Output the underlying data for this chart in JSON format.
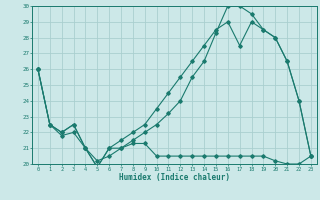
{
  "xlabel": "Humidex (Indice chaleur)",
  "bg_color": "#cce8e8",
  "grid_color": "#aacfcf",
  "line_color": "#1a7a6e",
  "xlim": [
    -0.5,
    23.5
  ],
  "ylim": [
    20,
    30
  ],
  "yticks": [
    20,
    21,
    22,
    23,
    24,
    25,
    26,
    27,
    28,
    29,
    30
  ],
  "xticks": [
    0,
    1,
    2,
    3,
    4,
    5,
    6,
    7,
    8,
    9,
    10,
    11,
    12,
    13,
    14,
    15,
    16,
    17,
    18,
    19,
    20,
    21,
    22,
    23
  ],
  "line1_x": [
    0,
    1,
    2,
    3,
    4,
    5,
    6,
    7,
    8,
    9,
    10,
    11,
    12,
    13,
    14,
    15,
    16,
    17,
    18,
    19,
    20,
    21,
    22,
    23
  ],
  "line1_y": [
    26,
    22.5,
    22,
    22.5,
    21,
    19.8,
    21,
    21,
    21.5,
    22,
    22.5,
    23.2,
    24,
    25.5,
    26.5,
    28.3,
    30,
    30,
    29.5,
    28.5,
    28,
    26.5,
    24,
    20.5
  ],
  "line2_x": [
    0,
    1,
    2,
    3,
    4,
    5,
    6,
    7,
    8,
    9,
    10,
    11,
    12,
    13,
    14,
    15,
    16,
    17,
    18,
    19,
    20,
    21,
    22,
    23
  ],
  "line2_y": [
    26,
    22.5,
    22,
    22.5,
    21,
    19.8,
    21,
    21.5,
    22,
    22.5,
    23.5,
    24.5,
    25.5,
    26.5,
    27.5,
    28.5,
    29,
    27.5,
    29,
    28.5,
    28,
    26.5,
    24,
    20.5
  ],
  "line3_x": [
    0,
    1,
    2,
    3,
    4,
    5,
    6,
    7,
    8,
    9,
    10,
    11,
    12,
    13,
    14,
    15,
    16,
    17,
    18,
    19,
    20,
    21,
    22,
    23
  ],
  "line3_y": [
    26,
    22.5,
    21.8,
    22,
    21,
    20.2,
    20.5,
    21,
    21.3,
    21.3,
    20.5,
    20.5,
    20.5,
    20.5,
    20.5,
    20.5,
    20.5,
    20.5,
    20.5,
    20.5,
    20.2,
    20,
    20,
    20.5
  ]
}
